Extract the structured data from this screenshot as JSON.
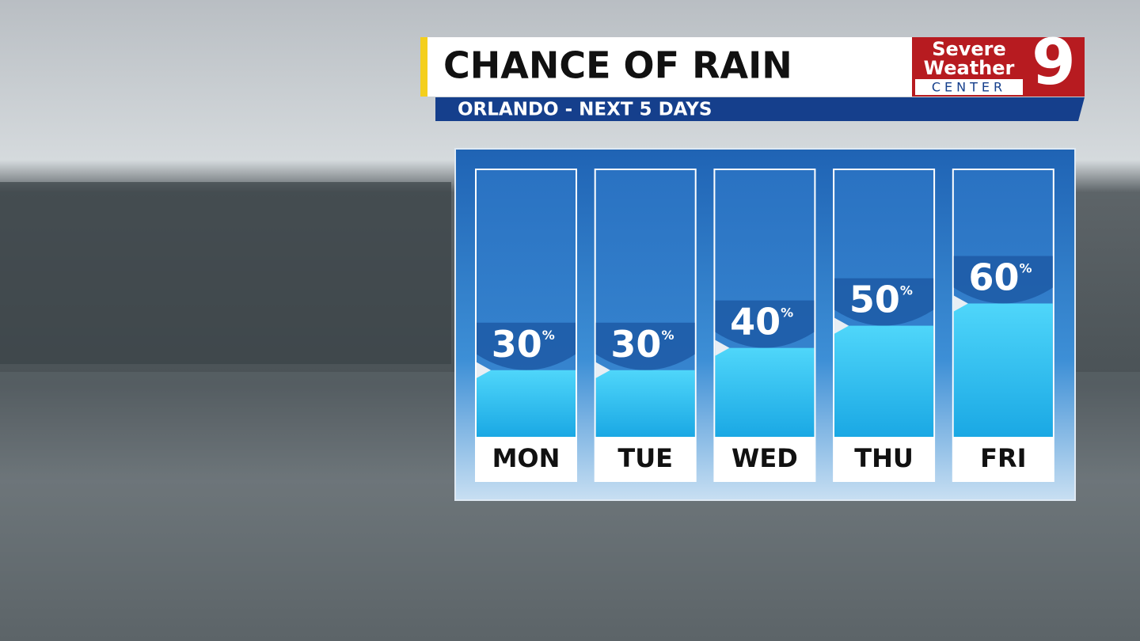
{
  "chart_data": {
    "type": "bar",
    "title": "CHANCE OF RAIN",
    "subtitle": "ORLANDO - NEXT 5 DAYS",
    "categories": [
      "MON",
      "TUE",
      "WED",
      "THU",
      "FRI"
    ],
    "values": [
      30,
      30,
      40,
      50,
      60
    ],
    "value_labels": [
      "30%",
      "30%",
      "40%",
      "50%",
      "60%"
    ],
    "color": "#2ec3f0",
    "ylim": [
      0,
      120
    ]
  },
  "logo": {
    "line1": "Severe",
    "line2": "Weather",
    "line3": "CENTER",
    "number": "9"
  }
}
